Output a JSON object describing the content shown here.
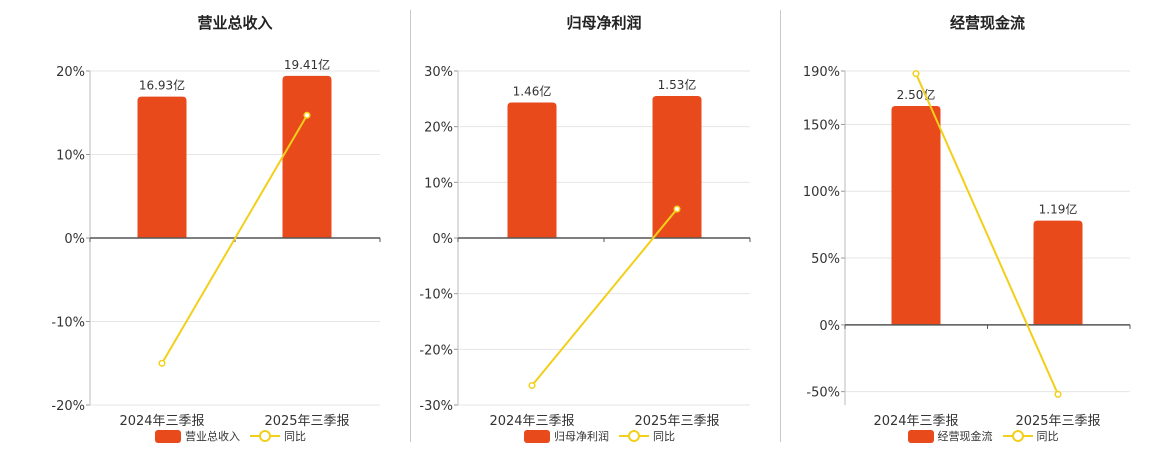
{
  "colors": {
    "bar": "#e84a1c",
    "line": "#f2cf1a",
    "grid": "#e6e6e6",
    "axis": "#555555"
  },
  "chart_data": [
    {
      "type": "bar",
      "title": "营业总收入",
      "categories": [
        "2024年三季报",
        "2025年三季报"
      ],
      "series": [
        {
          "name": "营业总收入",
          "values": [
            16.93,
            19.41
          ],
          "labels": [
            "16.93亿",
            "19.41亿"
          ],
          "unit": "亿"
        },
        {
          "name": "同比",
          "type": "line",
          "values": [
            -15.0,
            14.7
          ],
          "unit": "%"
        }
      ],
      "bar_axis_max": 20.0,
      "ylim": [
        -20,
        20
      ],
      "yticks": [
        "20%",
        "10%",
        "0%",
        "-10%",
        "-20%"
      ],
      "grid": true,
      "legend": "bottom"
    },
    {
      "type": "bar",
      "title": "归母净利润",
      "categories": [
        "2024年三季报",
        "2025年三季报"
      ],
      "series": [
        {
          "name": "归母净利润",
          "values": [
            1.46,
            1.53
          ],
          "labels": [
            "1.46亿",
            "1.53亿"
          ],
          "unit": "亿"
        },
        {
          "name": "同比",
          "type": "line",
          "values": [
            -26.5,
            5.2
          ],
          "unit": "%"
        }
      ],
      "bar_axis_max": 1.8,
      "ylim": [
        -30,
        30
      ],
      "yticks": [
        "30%",
        "20%",
        "10%",
        "0%",
        "-10%",
        "-20%",
        "-30%"
      ],
      "grid": true,
      "legend": "bottom"
    },
    {
      "type": "bar",
      "title": "经营现金流",
      "categories": [
        "2024年三季报",
        "2025年三季报"
      ],
      "series": [
        {
          "name": "经营现金流",
          "values": [
            2.5,
            1.19
          ],
          "labels": [
            "2.50亿",
            "1.19亿"
          ],
          "unit": "亿"
        },
        {
          "name": "同比",
          "type": "line",
          "values": [
            188,
            -52
          ],
          "unit": "%"
        }
      ],
      "bar_axis_max": 2.9,
      "ylim": [
        -60,
        190
      ],
      "yticks": [
        "190%",
        "150%",
        "100%",
        "50%",
        "0%",
        "-50%"
      ],
      "grid": true,
      "legend": "bottom"
    }
  ]
}
